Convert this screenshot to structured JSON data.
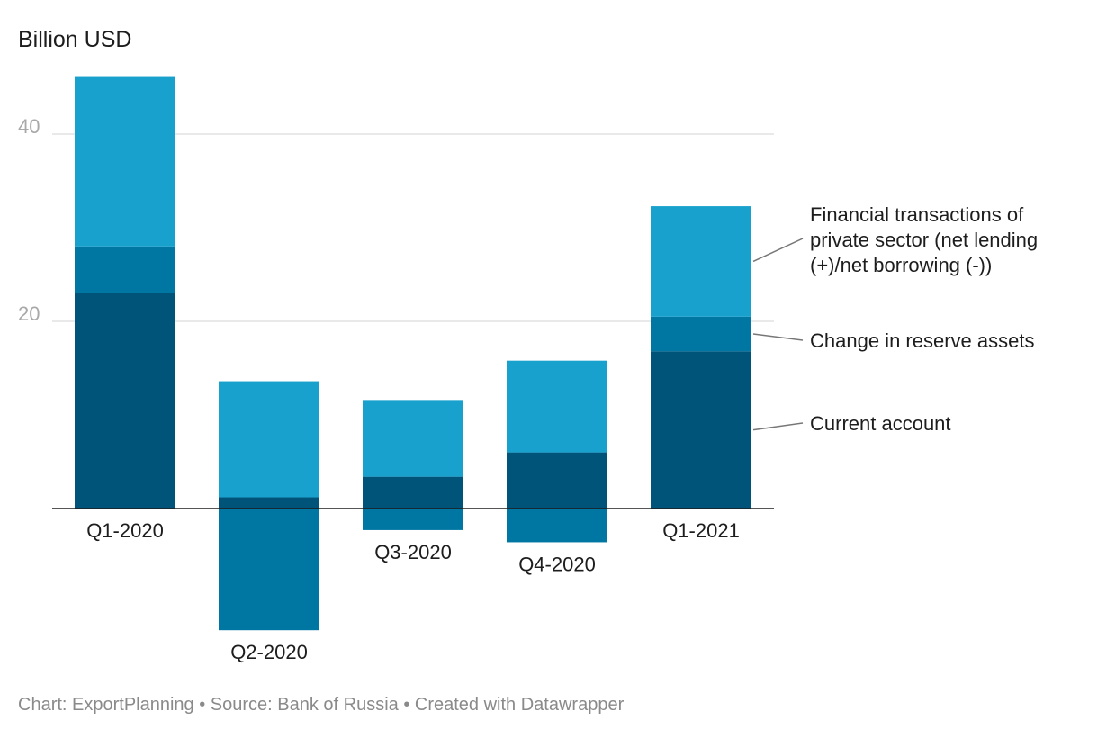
{
  "chart_data": {
    "type": "bar",
    "stacked": true,
    "title": "",
    "unit_label": "Billion USD",
    "categories": [
      "Q1-2020",
      "Q2-2020",
      "Q3-2020",
      "Q4-2020",
      "Q1-2021"
    ],
    "series": [
      {
        "name": "Current account",
        "color": "#00547a",
        "values": [
          23.0,
          1.2,
          3.4,
          6.0,
          16.8
        ]
      },
      {
        "name": "Change in reserve assets",
        "color": "#0077a2",
        "values": [
          5.0,
          -13.0,
          -2.3,
          -3.6,
          3.7
        ]
      },
      {
        "name": "Financial transactions of private sector (net lending (+)/net borrowing (-))",
        "legend_lines": [
          "Financial transactions of",
          "private sector (net lending",
          "(+)/net borrowing (-))"
        ],
        "color": "#18a1cd",
        "values": [
          18.1,
          12.4,
          8.2,
          9.8,
          11.8
        ]
      }
    ],
    "y_ticks": [
      20,
      40
    ],
    "y_tick_labels": [
      "20",
      "40"
    ],
    "ylim": [
      -13,
      46
    ],
    "grid": true,
    "legend_position": "right (direct labels)"
  },
  "footer": "Chart: ExportPlanning • Source: Bank of Russia • Created with Datawrapper"
}
